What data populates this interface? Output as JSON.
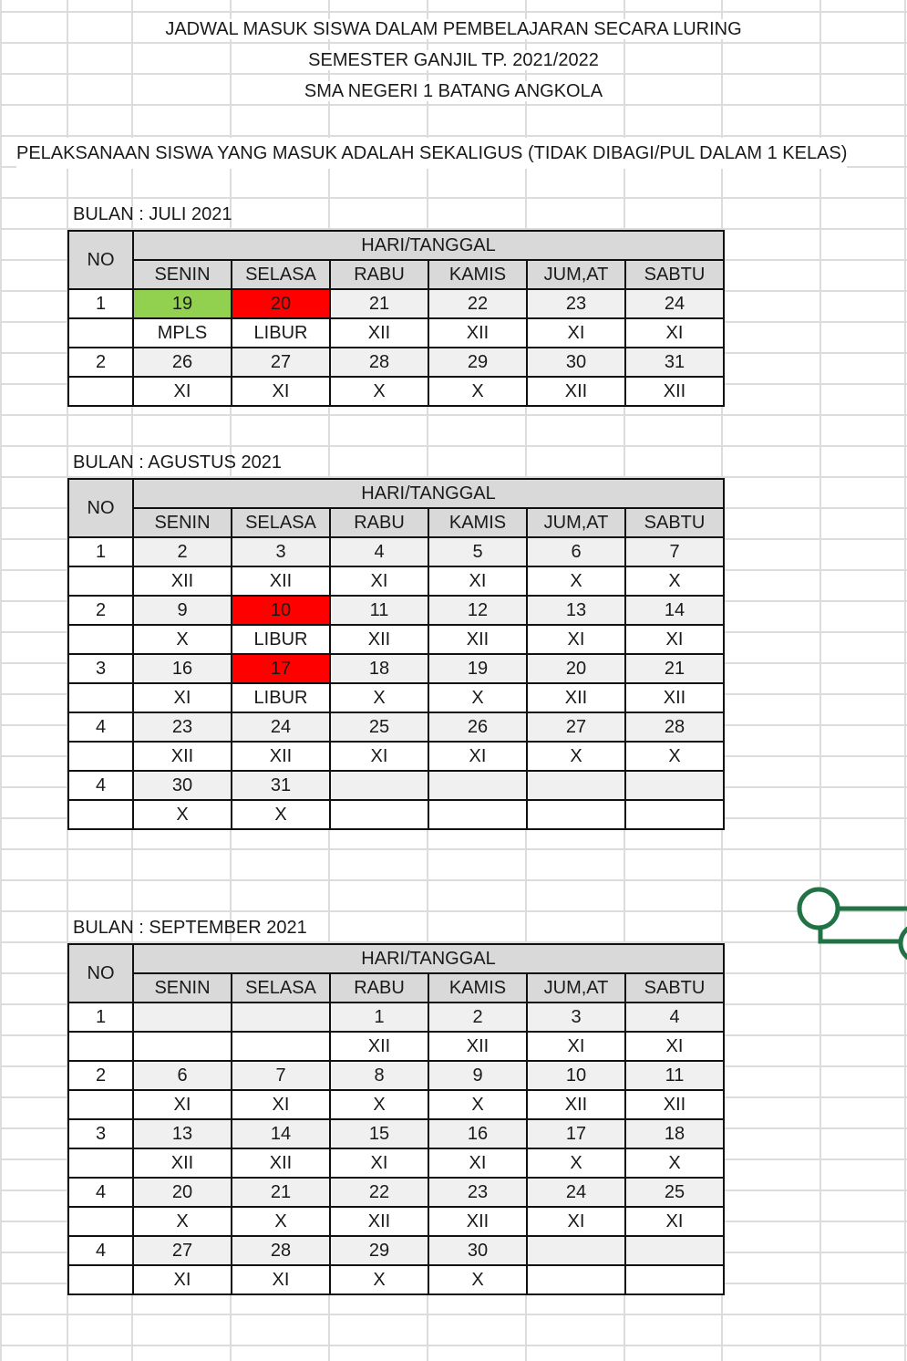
{
  "titles": [
    "JADWAL MASUK SISWA DALAM PEMBELAJARAN SECARA LURING",
    "SEMESTER GANJIL TP. 2021/2022",
    "SMA NEGERI 1 BATANG ANGKOLA"
  ],
  "note": "PELAKSANAAN SISWA YANG MASUK ADALAH SEKALIGUS (TIDAK DIBAGI/PUL DALAM 1 KELAS)",
  "header": {
    "no": "NO",
    "group": "HARI/TANGGAL",
    "days": [
      "SENIN",
      "SELASA",
      "RABU",
      "KAMIS",
      "JUM,AT",
      "SABTU"
    ]
  },
  "colors": {
    "green": "#92d050",
    "red": "#ff0000",
    "header_bg": "#d9d9d9",
    "connector": "#217346"
  },
  "months": [
    {
      "label": "BULAN : JULI 2021",
      "weeks": [
        {
          "no": "1",
          "dates": [
            "19",
            "20",
            "21",
            "22",
            "23",
            "24"
          ],
          "classes": [
            "MPLS",
            "LIBUR",
            "XII",
            "XII",
            "XI",
            "XI"
          ],
          "highlight": [
            "green",
            "red",
            "",
            "",
            "",
            ""
          ]
        },
        {
          "no": "2",
          "dates": [
            "26",
            "27",
            "28",
            "29",
            "30",
            "31"
          ],
          "classes": [
            "XI",
            "XI",
            "X",
            "X",
            "XII",
            "XII"
          ],
          "highlight": [
            "",
            "",
            "",
            "",
            "",
            ""
          ]
        }
      ]
    },
    {
      "label": "BULAN : AGUSTUS 2021",
      "weeks": [
        {
          "no": "1",
          "dates": [
            "2",
            "3",
            "4",
            "5",
            "6",
            "7"
          ],
          "classes": [
            "XII",
            "XII",
            "XI",
            "XI",
            "X",
            "X"
          ],
          "highlight": [
            "",
            "",
            "",
            "",
            "",
            ""
          ]
        },
        {
          "no": "2",
          "dates": [
            "9",
            "10",
            "11",
            "12",
            "13",
            "14"
          ],
          "classes": [
            "X",
            "LIBUR",
            "XII",
            "XII",
            "XI",
            "XI"
          ],
          "highlight": [
            "",
            "red",
            "",
            "",
            "",
            ""
          ]
        },
        {
          "no": "3",
          "dates": [
            "16",
            "17",
            "18",
            "19",
            "20",
            "21"
          ],
          "classes": [
            "XI",
            "LIBUR",
            "X",
            "X",
            "XII",
            "XII"
          ],
          "highlight": [
            "",
            "red",
            "",
            "",
            "",
            ""
          ]
        },
        {
          "no": "4",
          "dates": [
            "23",
            "24",
            "25",
            "26",
            "27",
            "28"
          ],
          "classes": [
            "XII",
            "XII",
            "XI",
            "XI",
            "X",
            "X"
          ],
          "highlight": [
            "",
            "",
            "",
            "",
            "",
            ""
          ]
        },
        {
          "no": "4",
          "dates": [
            "30",
            "31",
            "",
            "",
            "",
            ""
          ],
          "classes": [
            "X",
            "X",
            "",
            "",
            "",
            ""
          ],
          "highlight": [
            "",
            "",
            "",
            "",
            "",
            ""
          ]
        }
      ]
    },
    {
      "label": "BULAN : SEPTEMBER 2021",
      "weeks": [
        {
          "no": "1",
          "dates": [
            "",
            "",
            "1",
            "2",
            "3",
            "4"
          ],
          "classes": [
            "",
            "",
            "XII",
            "XII",
            "XI",
            "XI"
          ],
          "highlight": [
            "",
            "",
            "",
            "",
            "",
            ""
          ]
        },
        {
          "no": "2",
          "dates": [
            "6",
            "7",
            "8",
            "9",
            "10",
            "11"
          ],
          "classes": [
            "XI",
            "XI",
            "X",
            "X",
            "XII",
            "XII"
          ],
          "highlight": [
            "",
            "",
            "",
            "",
            "",
            ""
          ]
        },
        {
          "no": "3",
          "dates": [
            "13",
            "14",
            "15",
            "16",
            "17",
            "18"
          ],
          "classes": [
            "XII",
            "XII",
            "XI",
            "XI",
            "X",
            "X"
          ],
          "highlight": [
            "",
            "",
            "",
            "",
            "",
            ""
          ]
        },
        {
          "no": "4",
          "dates": [
            "20",
            "21",
            "22",
            "23",
            "24",
            "25"
          ],
          "classes": [
            "X",
            "X",
            "XII",
            "XII",
            "XI",
            "XI"
          ],
          "highlight": [
            "",
            "",
            "",
            "",
            "",
            ""
          ]
        },
        {
          "no": "4",
          "dates": [
            "27",
            "28",
            "29",
            "30",
            "",
            ""
          ],
          "classes": [
            "XI",
            "XI",
            "X",
            "X",
            "",
            ""
          ],
          "highlight": [
            "",
            "",
            "",
            "",
            "",
            ""
          ]
        }
      ]
    }
  ]
}
